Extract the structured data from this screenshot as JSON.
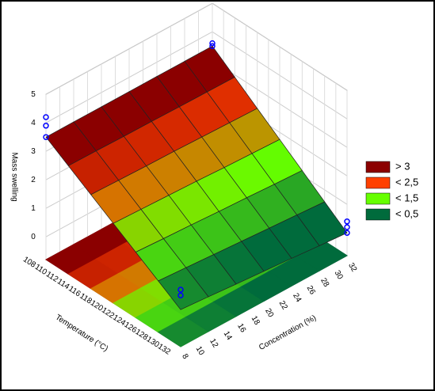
{
  "chart_data": {
    "type": "surface3d",
    "xlabel": "Temperature (°C)",
    "ylabel": "Concentration (%)",
    "zlabel": "Mass swelling",
    "xlim": [
      108,
      132
    ],
    "xticks": [
      108,
      110,
      112,
      114,
      116,
      118,
      120,
      122,
      124,
      126,
      128,
      130,
      132
    ],
    "ylim": [
      8,
      32
    ],
    "yticks": [
      8,
      10,
      12,
      14,
      16,
      18,
      20,
      22,
      24,
      26,
      28,
      30,
      32
    ],
    "zlim": [
      -0.8,
      5
    ],
    "zticks": [
      0,
      1,
      2,
      3,
      4,
      5
    ],
    "grid_x": [
      108,
      112,
      116,
      120,
      124,
      128,
      132
    ],
    "grid_y": [
      8,
      12,
      16,
      20,
      24,
      28,
      32
    ],
    "z": [
      [
        3.5,
        3.5,
        3.5,
        3.5,
        3.5,
        3.5,
        3.5
      ],
      [
        3.0,
        2.99,
        2.97,
        2.96,
        2.94,
        2.93,
        2.92
      ],
      [
        2.5,
        2.47,
        2.44,
        2.42,
        2.39,
        2.36,
        2.33
      ],
      [
        2.0,
        1.96,
        1.92,
        1.88,
        1.83,
        1.79,
        1.75
      ],
      [
        1.5,
        1.44,
        1.39,
        1.33,
        1.28,
        1.22,
        1.17
      ],
      [
        1.0,
        0.93,
        0.86,
        0.79,
        0.72,
        0.65,
        0.58
      ],
      [
        0.5,
        0.42,
        0.33,
        0.25,
        0.17,
        0.08,
        0.0
      ]
    ],
    "points": {
      "x": [
        108,
        108,
        108,
        108,
        108,
        132,
        132,
        132,
        132,
        132
      ],
      "y": [
        8,
        8,
        8,
        32,
        32,
        32,
        32,
        32,
        8,
        8
      ],
      "z": [
        4.2,
        3.9,
        3.5,
        3.6,
        3.5,
        0.4,
        0.2,
        0.0,
        1.2,
        1.0
      ],
      "color": "#0000ff"
    },
    "legend": [
      {
        "value": 3,
        "label": "> 3",
        "color": "#8b0000"
      },
      {
        "value": 2.5,
        "label": "< 2,5",
        "color": "#ff4000"
      },
      {
        "value": 1.5,
        "label": "< 1,5",
        "color": "#66ff00"
      },
      {
        "value": 0.5,
        "label": "< 0,5",
        "color": "#006b3c"
      }
    ],
    "grid": true,
    "legend_position": "right"
  }
}
